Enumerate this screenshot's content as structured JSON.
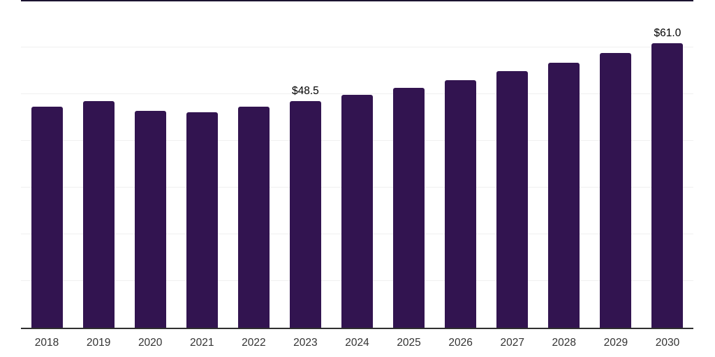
{
  "chart_data": {
    "type": "bar",
    "title": "",
    "xlabel": "",
    "ylabel": "",
    "categories": [
      "2018",
      "2019",
      "2020",
      "2021",
      "2022",
      "2023",
      "2024",
      "2025",
      "2026",
      "2027",
      "2028",
      "2029",
      "2030"
    ],
    "values": [
      47.3,
      48.6,
      46.4,
      46.2,
      47.4,
      48.5,
      49.9,
      51.4,
      53.1,
      54.9,
      56.7,
      58.8,
      61.0
    ],
    "data_labels": [
      {
        "category": "2023",
        "text": "$48.5"
      },
      {
        "category": "2030",
        "text": "$61.0"
      }
    ],
    "ylim": [
      0,
      70.2
    ],
    "grid": "horizontal",
    "gridline_interval": 10,
    "legend": "none",
    "y_axis_ticks": "none",
    "colors": {
      "bar": "#321450",
      "axis": "#2f2f2f",
      "gridline": "#f0f0f0",
      "top_rule": "#1b1330",
      "value_label": "#000000",
      "tick_label": "#333333"
    }
  }
}
